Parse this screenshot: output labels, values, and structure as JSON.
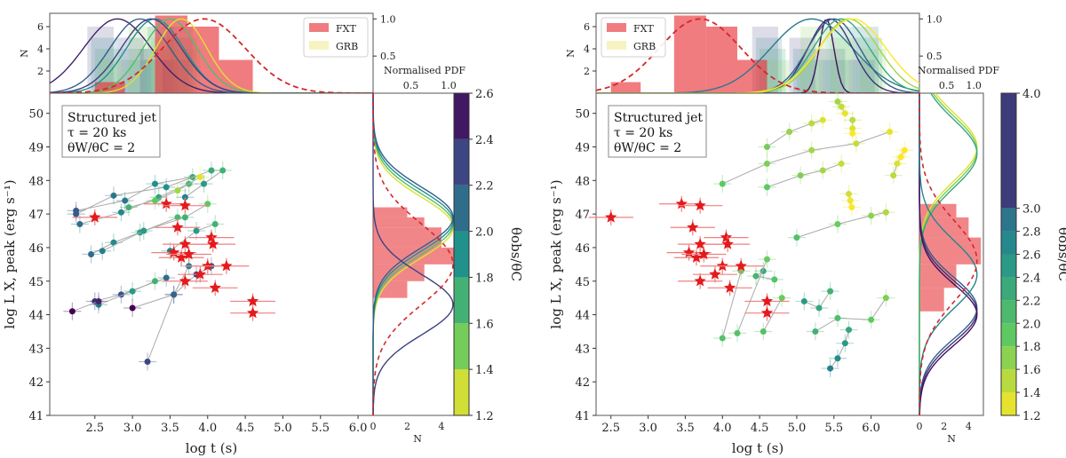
{
  "chart_data": [
    {
      "type": "scatter",
      "panel": "left",
      "xlabel": "log t (s)",
      "ylabel": "log L_X,peak (erg s^-1)",
      "xlim": [
        1.9,
        6.2
      ],
      "ylim": [
        41,
        50.6
      ],
      "xticks": [
        "2.5",
        "3.0",
        "3.5",
        "4.0",
        "4.5",
        "5.0",
        "5.5",
        "6.0"
      ],
      "yticks": [
        "41",
        "42",
        "43",
        "44",
        "45",
        "46",
        "47",
        "48",
        "49",
        "50"
      ],
      "annotation": [
        "Structured jet",
        "τ = 20 ks",
        "θW/θC = 2"
      ],
      "top_hist": {
        "ylabel": "N",
        "yticks": [
          "2",
          "4",
          "6"
        ],
        "right_ticks": [
          "0.5",
          "1.0"
        ],
        "legend": [
          "FXT",
          "GRB"
        ],
        "legend_position": "top-right"
      },
      "side_hist": {
        "xlabel": "N",
        "xticks": [
          "0",
          "2",
          "4"
        ],
        "top_label": "Normalised PDF",
        "top_ticks": [
          "0.5",
          "1.0"
        ]
      },
      "colorbar": {
        "label": "θobs/θC",
        "ticks": [
          "1.2",
          "1.4",
          "1.6",
          "1.8",
          "2.0",
          "2.2",
          "2.4",
          "2.6"
        ],
        "range": [
          1.2,
          2.6
        ]
      },
      "fxt_stars": [
        [
          2.5,
          46.9
        ],
        [
          3.45,
          47.3
        ],
        [
          3.7,
          47.25
        ],
        [
          3.6,
          46.6
        ],
        [
          3.7,
          46.1
        ],
        [
          4.05,
          46.3
        ],
        [
          4.07,
          46.1
        ],
        [
          3.55,
          45.85
        ],
        [
          3.65,
          45.7
        ],
        [
          3.75,
          45.8
        ],
        [
          4.0,
          45.45
        ],
        [
          4.25,
          45.45
        ],
        [
          3.9,
          45.2
        ],
        [
          3.7,
          45.0
        ],
        [
          4.1,
          44.8
        ],
        [
          4.6,
          44.4
        ],
        [
          4.6,
          44.05
        ]
      ],
      "grb_tracks": [
        {
          "c": 2.2,
          "pts": [
            [
              2.25,
              47.1
            ],
            [
              2.9,
              47.4
            ],
            [
              3.3,
              47.9
            ],
            [
              3.8,
              48.1
            ]
          ]
        },
        {
          "c": 2.2,
          "pts": [
            [
              2.25,
              47.0
            ],
            [
              2.75,
              47.55
            ],
            [
              3.45,
              47.8
            ],
            [
              4.05,
              48.3
            ]
          ]
        },
        {
          "c": 2.1,
          "pts": [
            [
              2.3,
              46.7
            ],
            [
              2.85,
              47.05
            ],
            [
              3.35,
              47.5
            ],
            [
              3.75,
              47.9
            ]
          ]
        },
        {
          "c": 1.7,
          "pts": [
            [
              2.95,
              47.2
            ],
            [
              3.3,
              47.4
            ],
            [
              3.6,
              47.7
            ],
            [
              3.9,
              48.1
            ]
          ]
        },
        {
          "c": 2.1,
          "pts": [
            [
              2.45,
              45.8
            ],
            [
              2.75,
              46.15
            ],
            [
              3.1,
              46.45
            ],
            [
              3.6,
              46.9
            ]
          ]
        },
        {
          "c": 2.0,
          "pts": [
            [
              2.6,
              45.9
            ],
            [
              3.15,
              46.5
            ],
            [
              3.7,
              46.9
            ],
            [
              4.0,
              47.3
            ]
          ]
        },
        {
          "c": 2.0,
          "pts": [
            [
              3.5,
              45.9
            ],
            [
              3.85,
              46.5
            ],
            [
              4.1,
              46.7
            ]
          ]
        },
        {
          "c": 2.0,
          "pts": [
            [
              3.7,
              47.5
            ],
            [
              3.95,
              47.9
            ],
            [
              4.2,
              48.3
            ]
          ]
        },
        {
          "c": 2.4,
          "pts": [
            [
              2.5,
              44.4
            ],
            [
              2.85,
              44.6
            ],
            [
              3.45,
              45.1
            ]
          ]
        },
        {
          "c": 2.0,
          "pts": [
            [
              2.55,
              44.3
            ],
            [
              3.0,
              44.7
            ],
            [
              3.3,
              45.0
            ]
          ]
        },
        {
          "c": 2.6,
          "pts": [
            [
              2.2,
              44.1
            ],
            [
              2.55,
              44.4
            ]
          ]
        },
        {
          "c": 2.6,
          "pts": [
            [
              3.0,
              44.2
            ],
            [
              3.55,
              44.6
            ],
            [
              3.85,
              45.2
            ],
            [
              4.05,
              45.45
            ]
          ]
        },
        {
          "c": 2.3,
          "pts": [
            [
              3.2,
              42.6
            ],
            [
              3.55,
              44.6
            ],
            [
              3.75,
              45.45
            ]
          ]
        }
      ]
    },
    {
      "type": "scatter",
      "panel": "right",
      "xlabel": "log t (s)",
      "ylabel": "log L_X,peak (erg s^-1)",
      "xlim": [
        2.3,
        6.65
      ],
      "ylim": [
        41,
        50.6
      ],
      "xticks": [
        "2.5",
        "3.0",
        "3.5",
        "4.0",
        "4.5",
        "5.0",
        "5.5",
        "6.0"
      ],
      "yticks": [
        "41",
        "42",
        "43",
        "44",
        "45",
        "46",
        "47",
        "48",
        "49",
        "50"
      ],
      "annotation": [
        "Structured jet",
        "τ = 20 ks",
        "θW/θC = 2"
      ],
      "top_hist": {
        "ylabel": "N",
        "yticks": [
          "2",
          "4",
          "6"
        ],
        "right_ticks": [
          "0.5",
          "1.0"
        ],
        "legend": [
          "FXT",
          "GRB"
        ],
        "legend_position": "top-left"
      },
      "side_hist": {
        "xlabel": "N",
        "xticks": [
          "0",
          "2",
          "4"
        ],
        "top_label": "Normalised PDF",
        "top_ticks": [
          "0.5",
          "1.0"
        ]
      },
      "colorbar": {
        "label": "θobs/θC",
        "ticks": [
          "1.2",
          "1.4",
          "1.6",
          "1.8",
          "2.0",
          "2.2",
          "2.4",
          "2.6",
          "2.8",
          "3.0",
          "4.0"
        ],
        "range": [
          1.2,
          4.0
        ]
      },
      "fxt_stars": [
        [
          2.5,
          46.9
        ],
        [
          3.45,
          47.3
        ],
        [
          3.7,
          47.25
        ],
        [
          3.6,
          46.6
        ],
        [
          3.7,
          46.1
        ],
        [
          4.05,
          46.3
        ],
        [
          4.07,
          46.1
        ],
        [
          3.55,
          45.85
        ],
        [
          3.65,
          45.7
        ],
        [
          3.75,
          45.8
        ],
        [
          4.0,
          45.45
        ],
        [
          4.25,
          45.45
        ],
        [
          3.9,
          45.2
        ],
        [
          3.7,
          45.0
        ],
        [
          4.1,
          44.8
        ],
        [
          4.6,
          44.4
        ],
        [
          4.6,
          44.05
        ]
      ],
      "grb_tracks": [
        {
          "c": 1.9,
          "pts": [
            [
              4.0,
              47.9
            ],
            [
              4.6,
              48.5
            ],
            [
              5.2,
              48.9
            ],
            [
              5.8,
              49.1
            ],
            [
              6.25,
              49.45
            ]
          ]
        },
        {
          "c": 1.8,
          "pts": [
            [
              4.6,
              49.0
            ],
            [
              4.9,
              49.45
            ],
            [
              5.2,
              49.7
            ],
            [
              5.35,
              49.8
            ]
          ]
        },
        {
          "c": 1.6,
          "pts": [
            [
              5.55,
              50.35
            ],
            [
              5.6,
              50.2
            ],
            [
              5.65,
              50.0
            ]
          ]
        },
        {
          "c": 1.9,
          "pts": [
            [
              4.6,
              47.8
            ],
            [
              5.05,
              48.15
            ],
            [
              5.35,
              48.3
            ],
            [
              5.6,
              48.5
            ]
          ]
        },
        {
          "c": 1.5,
          "pts": [
            [
              5.75,
              49.8
            ],
            [
              5.75,
              49.55
            ],
            [
              5.75,
              49.4
            ]
          ]
        },
        {
          "c": 1.5,
          "pts": [
            [
              6.3,
              48.15
            ],
            [
              6.35,
              48.5
            ],
            [
              6.4,
              48.7
            ],
            [
              6.45,
              48.9
            ]
          ]
        },
        {
          "c": 1.4,
          "pts": [
            [
              5.7,
              47.6
            ],
            [
              5.72,
              47.4
            ],
            [
              5.74,
              47.2
            ]
          ]
        },
        {
          "c": 2.0,
          "pts": [
            [
              5.0,
              46.3
            ],
            [
              5.55,
              46.7
            ],
            [
              6.0,
              46.95
            ],
            [
              6.2,
              47.05
            ]
          ]
        },
        {
          "c": 2.3,
          "pts": [
            [
              4.55,
              45.3
            ],
            [
              4.45,
              45.15
            ],
            [
              4.7,
              45.05
            ]
          ]
        },
        {
          "c": 2.5,
          "pts": [
            [
              5.1,
              44.4
            ],
            [
              5.3,
              44.2
            ],
            [
              5.45,
              44.7
            ]
          ]
        },
        {
          "c": 2.2,
          "pts": [
            [
              5.25,
              43.5
            ],
            [
              5.55,
              43.9
            ],
            [
              6.0,
              43.85
            ],
            [
              6.2,
              44.5
            ]
          ]
        },
        {
          "c": 2.8,
          "pts": [
            [
              5.45,
              42.4
            ],
            [
              5.55,
              42.7
            ],
            [
              5.65,
              43.15
            ],
            [
              5.7,
              43.55
            ]
          ]
        },
        {
          "c": 2.0,
          "pts": [
            [
              4.0,
              43.3
            ],
            [
              4.25,
              45.3
            ]
          ]
        },
        {
          "c": 2.0,
          "pts": [
            [
              4.2,
              43.45
            ],
            [
              4.6,
              45.65
            ]
          ]
        },
        {
          "c": 2.0,
          "pts": [
            [
              4.55,
              43.5
            ],
            [
              4.8,
              44.5
            ]
          ]
        }
      ]
    }
  ]
}
